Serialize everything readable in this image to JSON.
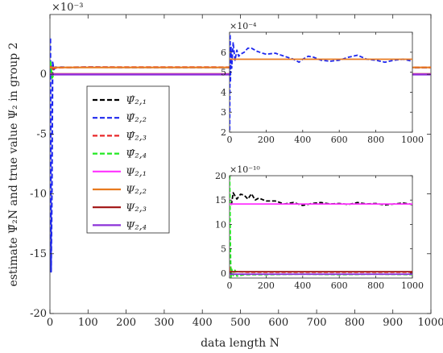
{
  "chart_data": [
    {
      "id": "main",
      "type": "line",
      "xlabel": "data length N",
      "ylabel": "estimate Ψ̂₂N and true value Ψ₂ in group 2",
      "exponent_label": "×10⁻³",
      "xlim": [
        0,
        1000
      ],
      "ylim": [
        -20,
        5
      ],
      "xticks": [
        0,
        100,
        200,
        300,
        400,
        500,
        600,
        700,
        800,
        900,
        1000
      ],
      "yticks": [
        -20,
        -15,
        -10,
        -5,
        0
      ],
      "grid": false,
      "legend_position": "upper-left",
      "legend": [
        {
          "label": "Ψ̂₂,₁",
          "color": "#000000",
          "dash": "dashed"
        },
        {
          "label": "Ψ̂₂,₂",
          "color": "#1f28ee",
          "dash": "dashed"
        },
        {
          "label": "Ψ̂₂,₃",
          "color": "#e8282a",
          "dash": "dashed"
        },
        {
          "label": "Ψ̂₂,₄",
          "color": "#22e822",
          "dash": "dashed"
        },
        {
          "label": "Ψ₂,₁",
          "color": "#ff33ff",
          "dash": "solid"
        },
        {
          "label": "Ψ₂,₂",
          "color": "#e87a1f",
          "dash": "solid"
        },
        {
          "label": "Ψ₂,₃",
          "color": "#a01010",
          "dash": "solid"
        },
        {
          "label": "Ψ₂,₄",
          "color": "#8c32d8",
          "dash": "solid"
        }
      ],
      "series": [
        {
          "color": "#1f28ee",
          "dash": "dashed",
          "x": [
            1,
            3,
            5,
            7,
            10,
            15,
            20,
            30,
            50,
            100,
            200,
            400,
            600,
            800,
            1000
          ],
          "y": [
            3.0,
            -16.5,
            -10,
            1.0,
            0.4,
            0.6,
            0.55,
            0.6,
            0.57,
            0.6,
            0.57,
            0.58,
            0.56,
            0.57,
            0.56
          ]
        },
        {
          "color": "#e8282a",
          "dash": "dashed",
          "x": [
            1,
            5,
            10,
            20,
            50,
            100,
            1000
          ],
          "y": [
            0.8,
            0.3,
            0.5,
            0.55,
            0.58,
            0.6,
            0.58
          ]
        },
        {
          "color": "#000000",
          "dash": "dashed",
          "x": [
            1,
            5,
            10,
            50,
            1000
          ],
          "y": [
            0.0,
            0.1,
            0.0,
            0.0,
            0.0
          ]
        },
        {
          "color": "#22e822",
          "dash": "dashed",
          "x": [
            1,
            3,
            6,
            10,
            1000
          ],
          "y": [
            1.1,
            0.5,
            -0.3,
            0.0,
            0.0
          ]
        },
        {
          "color": "#e87a1f",
          "dash": "solid",
          "x": [
            0,
            1000
          ],
          "y": [
            0.57,
            0.57
          ]
        },
        {
          "color": "#a01010",
          "dash": "solid",
          "x": [
            0,
            1000
          ],
          "y": [
            0.03,
            0.03
          ]
        },
        {
          "color": "#ff33ff",
          "dash": "solid",
          "x": [
            0,
            1000
          ],
          "y": [
            0.0014,
            0.0014
          ]
        },
        {
          "color": "#8c32d8",
          "dash": "solid",
          "x": [
            0,
            1000
          ],
          "y": [
            -0.02,
            -0.02
          ]
        }
      ]
    },
    {
      "id": "inset_top",
      "type": "line",
      "exponent_label": "×10⁻⁴",
      "xlim": [
        0,
        1000
      ],
      "ylim": [
        2,
        7
      ],
      "xticks": [
        0,
        200,
        400,
        600,
        800,
        1000
      ],
      "yticks": [
        2,
        3,
        4,
        5,
        6
      ],
      "series": [
        {
          "color": "#1f28ee",
          "dash": "dashed",
          "x": [
            1,
            3,
            5,
            8,
            12,
            16,
            20,
            25,
            30,
            40,
            50,
            60,
            80,
            100,
            120,
            150,
            180,
            200,
            250,
            300,
            350,
            380,
            400,
            430,
            460,
            500,
            550,
            600,
            650,
            700,
            750,
            800,
            850,
            900,
            950,
            1000
          ],
          "y": [
            2.1,
            6.9,
            4.5,
            6.3,
            5.2,
            5.9,
            6.5,
            6.0,
            5.6,
            6.1,
            5.8,
            5.9,
            6.0,
            6.2,
            6.2,
            6.05,
            5.95,
            5.9,
            5.95,
            5.8,
            5.65,
            5.5,
            5.65,
            5.8,
            5.75,
            5.6,
            5.55,
            5.6,
            5.75,
            5.85,
            5.65,
            5.6,
            5.5,
            5.6,
            5.65,
            5.55
          ]
        },
        {
          "color": "#e87a1f",
          "dash": "solid",
          "x": [
            0,
            1000
          ],
          "y": [
            5.65,
            5.65
          ]
        }
      ]
    },
    {
      "id": "inset_bottom",
      "type": "line",
      "exponent_label": "×10⁻¹⁰",
      "xlim": [
        0,
        1000
      ],
      "ylim": [
        -1,
        20
      ],
      "xticks": [
        0,
        200,
        400,
        600,
        800,
        1000
      ],
      "yticks": [
        0,
        5,
        10,
        15,
        20
      ],
      "series": [
        {
          "color": "#000000",
          "dash": "dashed",
          "x": [
            10,
            20,
            40,
            60,
            80,
            100,
            120,
            140,
            160,
            200,
            250,
            300,
            350,
            400,
            450,
            500,
            550,
            600,
            650,
            700,
            750,
            800,
            850,
            900,
            950,
            1000
          ],
          "y": [
            14,
            16.5,
            15.2,
            16.2,
            16.0,
            15.2,
            16.3,
            15.0,
            15.4,
            14.8,
            14.8,
            14.2,
            14.5,
            13.9,
            14.3,
            14.5,
            14.2,
            14.3,
            14.1,
            14.5,
            14.2,
            14.3,
            14.0,
            14.2,
            14.4,
            14.1
          ]
        },
        {
          "color": "#e8282a",
          "dash": "dashed",
          "x": [
            1,
            5,
            10,
            20,
            40,
            100,
            1000
          ],
          "y": [
            0.5,
            1.5,
            0.6,
            0.2,
            0.3,
            0.2,
            0.2
          ]
        },
        {
          "color": "#22e822",
          "dash": "dashed",
          "x": [
            1,
            3,
            5,
            8,
            12,
            20,
            30,
            40,
            80,
            200,
            400,
            600,
            800,
            1000
          ],
          "y": [
            20,
            12,
            5,
            -1,
            0.8,
            -0.5,
            0.6,
            -0.6,
            -0.3,
            -0.3,
            -0.2,
            -0.3,
            -0.2,
            -0.3
          ]
        },
        {
          "color": "#a01010",
          "dash": "solid",
          "x": [
            0,
            1000
          ],
          "y": [
            0.3,
            0.3
          ]
        },
        {
          "color": "#8c32d8",
          "dash": "solid",
          "x": [
            0,
            1000
          ],
          "y": [
            -0.2,
            -0.2
          ]
        },
        {
          "color": "#ff33ff",
          "dash": "solid",
          "x": [
            0,
            1000
          ],
          "y": [
            14.2,
            14.2
          ]
        }
      ]
    }
  ]
}
